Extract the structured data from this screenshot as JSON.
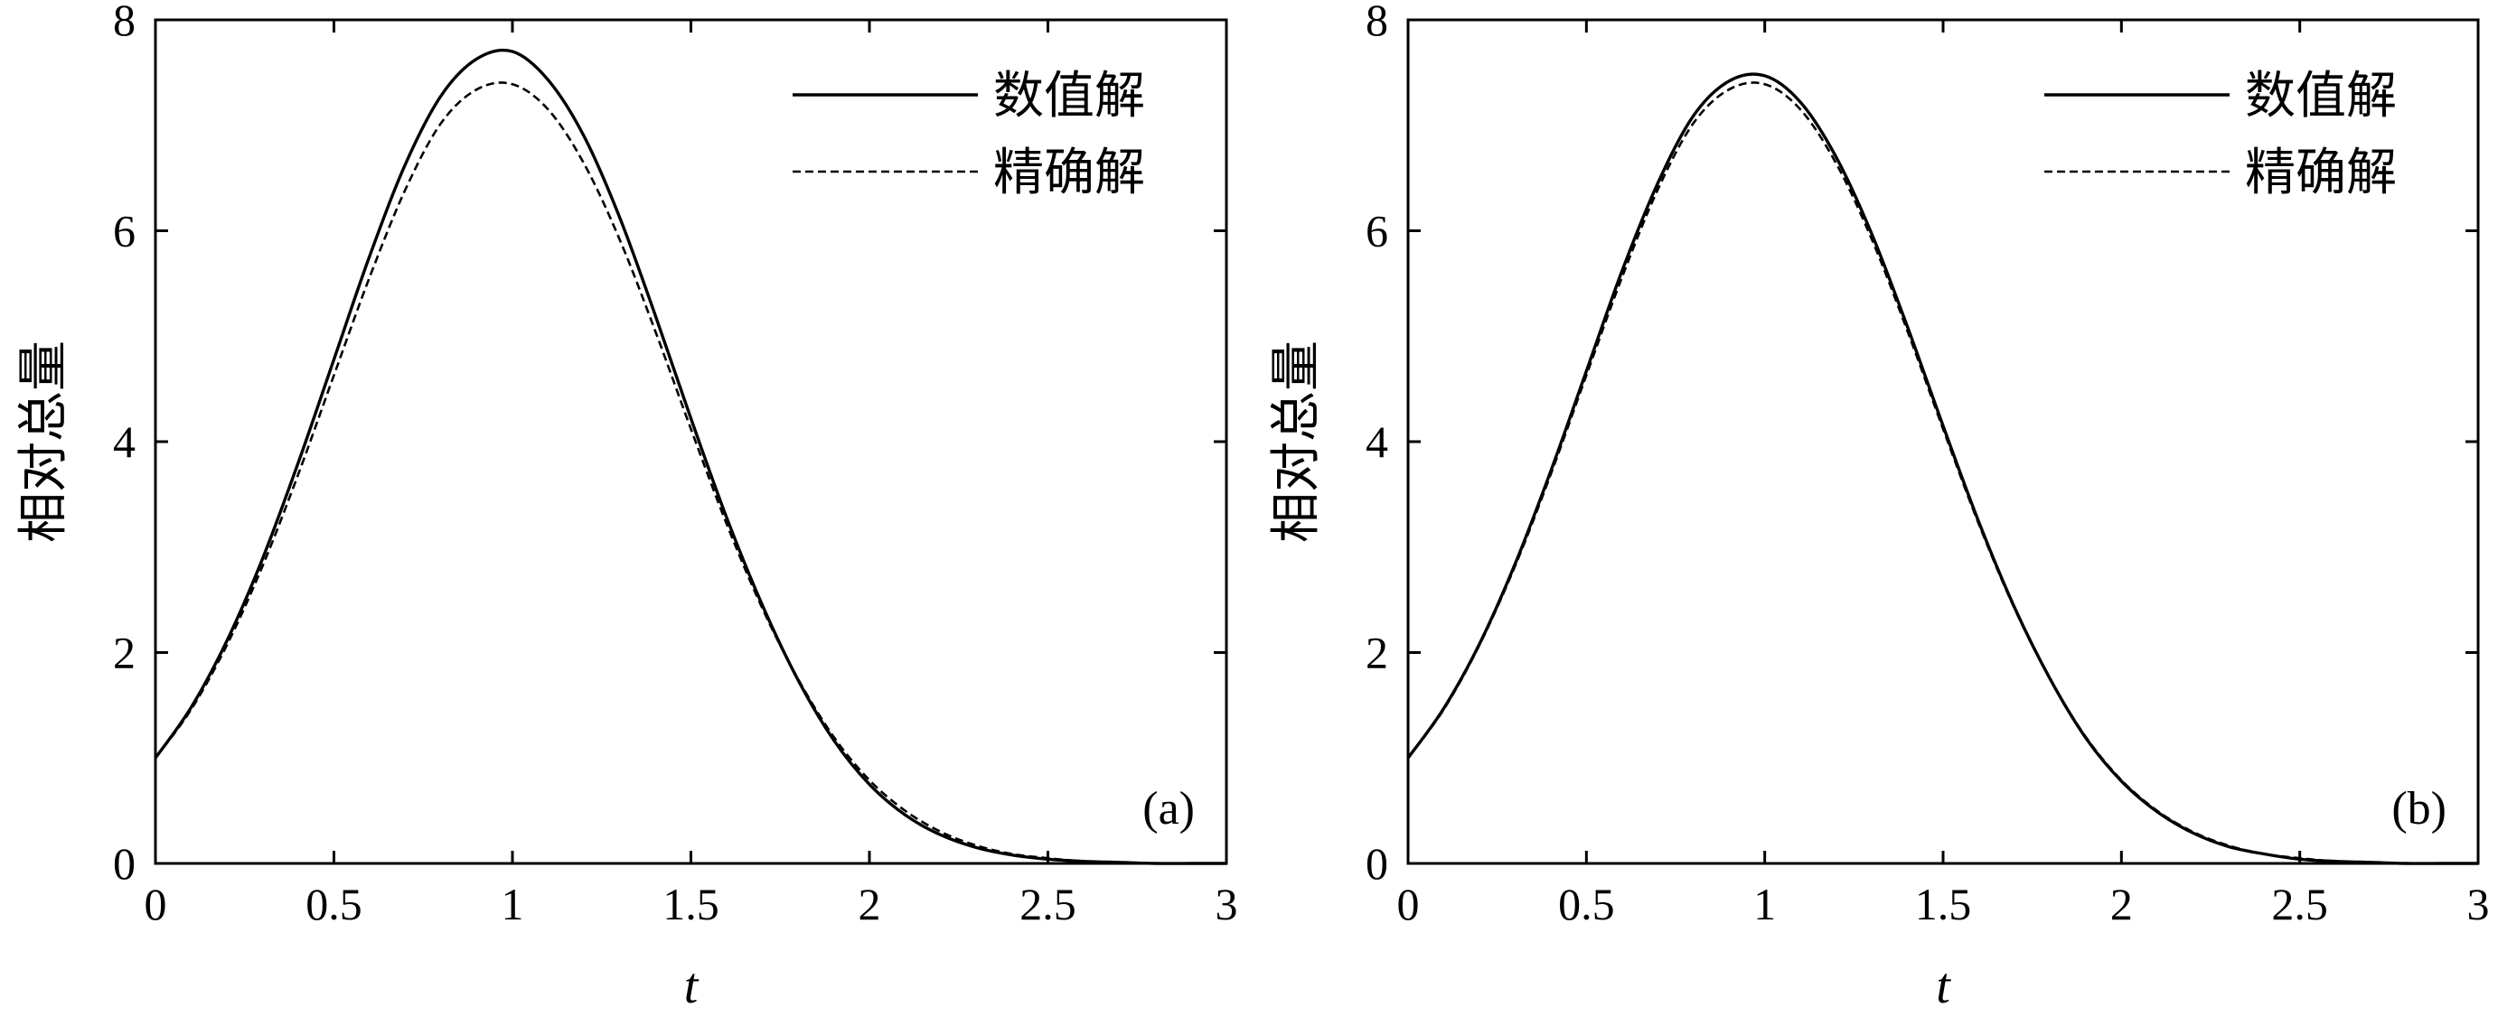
{
  "chart_data": [
    {
      "type": "line",
      "panel_label": "(a)",
      "xlabel": "t",
      "ylabel": "相对总量",
      "xlim": [
        0,
        3
      ],
      "ylim": [
        0,
        8
      ],
      "xticks": [
        0,
        0.5,
        1,
        1.5,
        2,
        2.5,
        3
      ],
      "xtick_labels": [
        "0",
        "0.5",
        "1",
        "1.5",
        "2",
        "2.5",
        "3"
      ],
      "yticks": [
        0,
        2,
        4,
        6,
        8
      ],
      "ytick_labels": [
        "0",
        "2",
        "4",
        "6",
        "8"
      ],
      "grid": false,
      "legend_position": "top-right",
      "x": [
        0,
        0.1,
        0.2,
        0.3,
        0.4,
        0.5,
        0.6,
        0.7,
        0.8,
        0.9,
        1.0,
        1.1,
        1.2,
        1.3,
        1.4,
        1.5,
        1.6,
        1.7,
        1.8,
        1.9,
        2.0,
        2.1,
        2.2,
        2.3,
        2.4,
        2.5,
        2.6,
        2.7,
        2.8,
        2.9,
        3.0
      ],
      "series": [
        {
          "name": "数值解",
          "style": "solid",
          "values": [
            1.0,
            1.48,
            2.11,
            2.89,
            3.8,
            4.78,
            5.76,
            6.63,
            7.28,
            7.63,
            7.7,
            7.43,
            6.9,
            6.13,
            5.2,
            4.22,
            3.28,
            2.45,
            1.74,
            1.17,
            0.75,
            0.46,
            0.27,
            0.15,
            0.08,
            0.04,
            0.02,
            0.01,
            0.0,
            0.0,
            0.0
          ]
        },
        {
          "name": "精确解",
          "style": "dashed",
          "values": [
            1.0,
            1.46,
            2.07,
            2.82,
            3.69,
            4.63,
            5.56,
            6.39,
            7.02,
            7.34,
            7.39,
            7.15,
            6.64,
            5.92,
            5.05,
            4.12,
            3.22,
            2.42,
            1.75,
            1.2,
            0.79,
            0.5,
            0.3,
            0.17,
            0.09,
            0.05,
            0.02,
            0.01,
            0.0,
            0.0,
            0.0
          ]
        }
      ]
    },
    {
      "type": "line",
      "panel_label": "(b)",
      "xlabel": "t",
      "ylabel": "相对总量",
      "xlim": [
        0,
        3
      ],
      "ylim": [
        0,
        8
      ],
      "xticks": [
        0,
        0.5,
        1,
        1.5,
        2,
        2.5,
        3
      ],
      "xtick_labels": [
        "0",
        "0.5",
        "1",
        "1.5",
        "2",
        "2.5",
        "3"
      ],
      "yticks": [
        0,
        2,
        4,
        6,
        8
      ],
      "ytick_labels": [
        "0",
        "2",
        "4",
        "6",
        "8"
      ],
      "grid": false,
      "legend_position": "top-right",
      "x": [
        0,
        0.1,
        0.2,
        0.3,
        0.4,
        0.5,
        0.6,
        0.7,
        0.8,
        0.9,
        1.0,
        1.1,
        1.2,
        1.3,
        1.4,
        1.5,
        1.6,
        1.7,
        1.8,
        1.9,
        2.0,
        2.1,
        2.2,
        2.3,
        2.4,
        2.5,
        2.6,
        2.7,
        2.8,
        2.9,
        3.0
      ],
      "series": [
        {
          "name": "数值解",
          "style": "solid",
          "values": [
            1.0,
            1.47,
            2.08,
            2.84,
            3.72,
            4.67,
            5.62,
            6.45,
            7.09,
            7.42,
            7.47,
            7.22,
            6.7,
            5.97,
            5.09,
            4.15,
            3.24,
            2.43,
            1.75,
            1.19,
            0.78,
            0.49,
            0.29,
            0.16,
            0.09,
            0.04,
            0.02,
            0.01,
            0.0,
            0.0,
            0.0
          ]
        },
        {
          "name": "精确解",
          "style": "dashed",
          "values": [
            1.0,
            1.46,
            2.07,
            2.82,
            3.69,
            4.63,
            5.56,
            6.39,
            7.02,
            7.34,
            7.39,
            7.15,
            6.64,
            5.92,
            5.05,
            4.12,
            3.22,
            2.42,
            1.75,
            1.2,
            0.79,
            0.5,
            0.3,
            0.17,
            0.09,
            0.05,
            0.02,
            0.01,
            0.0,
            0.0,
            0.0
          ]
        }
      ]
    }
  ]
}
